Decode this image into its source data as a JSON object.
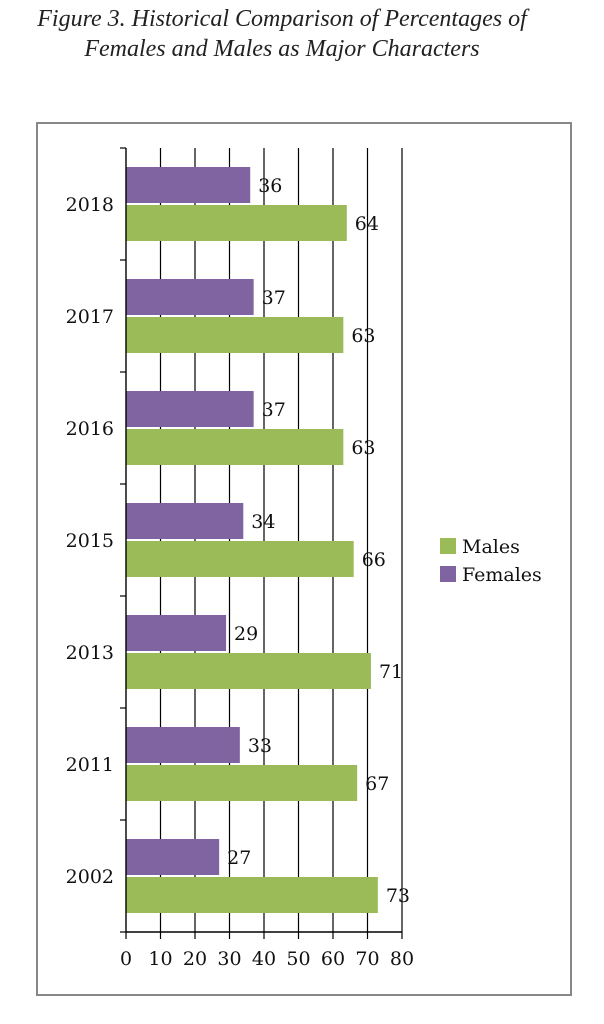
{
  "title": "Figure 3. Historical Comparison of Percentages of Females and Males as Major Characters",
  "colors": {
    "males": "#9BBB59",
    "females": "#8064A2",
    "axis": "#000000",
    "grid": "#000000"
  },
  "chart_data": {
    "type": "bar",
    "orientation": "horizontal",
    "title": "Figure 3. Historical Comparison of Percentages of Females and Males as Major Characters",
    "xlabel": "",
    "ylabel": "",
    "categories": [
      "2018",
      "2017",
      "2016",
      "2015",
      "2013",
      "2011",
      "2002"
    ],
    "series": [
      {
        "name": "Females",
        "values": [
          36,
          37,
          37,
          34,
          29,
          33,
          27
        ],
        "labels": [
          "36",
          "37",
          "37",
          "34",
          "29",
          "33",
          "27"
        ]
      },
      {
        "name": "Males",
        "values": [
          64,
          63,
          63,
          66,
          71,
          67,
          73
        ],
        "labels": [
          "64",
          "63",
          "63",
          "66",
          "71",
          "67",
          "73"
        ]
      }
    ],
    "xlim": [
      0,
      80
    ],
    "xticks": [
      "0",
      "10",
      "20",
      "30",
      "40",
      "50",
      "60",
      "70",
      "80"
    ],
    "grid": true,
    "legend": {
      "placement": "right",
      "entries": [
        "Males",
        "Females"
      ]
    }
  }
}
